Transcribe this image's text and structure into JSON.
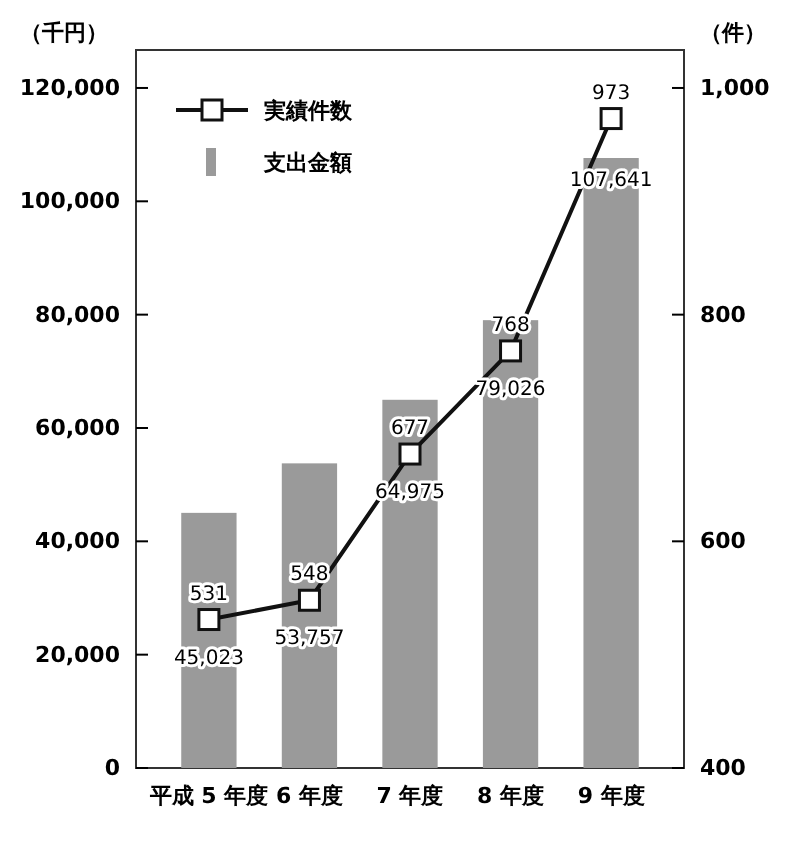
{
  "chart_data": {
    "type": "bar",
    "ylabel": "（千円）",
    "y2label": "（件）",
    "categories": [
      "平成 5 年度",
      "6 年度",
      "7 年度",
      "8 年度",
      "9 年度"
    ],
    "series": [
      {
        "name": "支出金額",
        "color": "#9a9a9a",
        "values": [
          45023,
          53757,
          64975,
          79026,
          107641
        ],
        "value_labels": [
          "45,023",
          "53,757",
          "64,975",
          "79,026",
          "107,641"
        ]
      },
      {
        "name": "実績件数",
        "type": "line",
        "axis": "y2",
        "color": "#111111",
        "marker": "square",
        "values": [
          531,
          548,
          677,
          768,
          973
        ],
        "value_labels": [
          "531",
          "548",
          "677",
          "768",
          "973"
        ]
      }
    ],
    "ylim": [
      0,
      126700
    ],
    "yticks": [
      {
        "value": 0,
        "label": "0"
      },
      {
        "value": 20000,
        "label": "20,000"
      },
      {
        "value": 40000,
        "label": "40,000"
      },
      {
        "value": 60000,
        "label": "60,000"
      },
      {
        "value": 80000,
        "label": "80,000"
      },
      {
        "value": 100000,
        "label": "100,000"
      },
      {
        "value": 120000,
        "label": "120,000"
      }
    ],
    "y2lim": [
      400,
      1033.5
    ],
    "y2ticks": [
      400,
      600,
      800,
      {
        "value": 1000,
        "label": "1,000"
      }
    ],
    "legend": "top left"
  }
}
